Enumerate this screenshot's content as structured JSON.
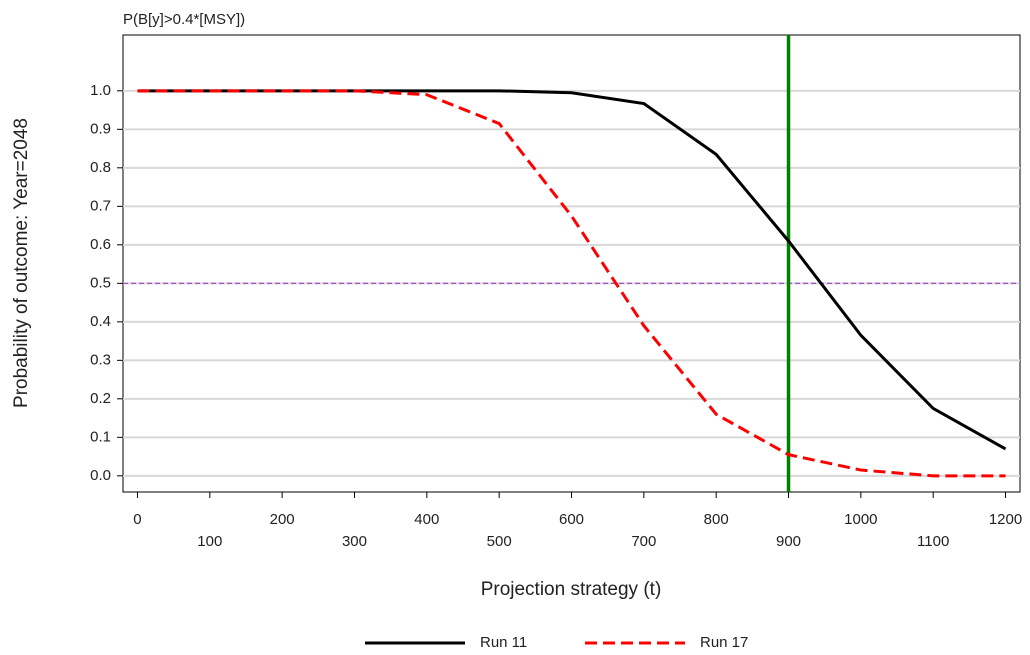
{
  "chart_data": {
    "type": "line",
    "annotation": "P(B[y]>0.4*[MSY])",
    "x_label": "Projection strategy (t)",
    "y_label": "Probability of outcome: Year=2048",
    "x": [
      0,
      100,
      200,
      300,
      400,
      500,
      600,
      700,
      800,
      900,
      1000,
      1100,
      1200
    ],
    "series": [
      {
        "name": "Run 11",
        "color": "#000000",
        "style": "solid",
        "values": [
          1,
          1,
          1,
          1,
          1,
          1,
          0.995,
          0.967,
          0.835,
          0.61,
          0.365,
          0.175,
          0.07
        ]
      },
      {
        "name": "Run 17",
        "color": "#ff0000",
        "style": "dashed",
        "values": [
          1,
          1,
          1,
          1,
          0.99,
          0.915,
          0.675,
          0.39,
          0.16,
          0.055,
          0.015,
          0,
          0
        ]
      }
    ],
    "xlim": [
      -20,
      1220
    ],
    "ylim": [
      -0.042,
      1.145
    ],
    "xticks": [
      0,
      100,
      200,
      300,
      400,
      500,
      600,
      700,
      800,
      900,
      1000,
      1100,
      1200
    ],
    "yticks": [
      {
        "value": 0,
        "label": "0.0"
      },
      0.1,
      0.2,
      0.3,
      0.4,
      0.5,
      0.6,
      0.7,
      0.8,
      0.9,
      {
        "value": 1,
        "label": "1.0"
      }
    ],
    "grid": true,
    "reference_lines": [
      {
        "axis": "y",
        "value": 0.5,
        "color": "#a040c0",
        "style": "dashed"
      },
      {
        "axis": "x",
        "value": 900,
        "color": "#008000",
        "style": "solid"
      }
    ],
    "legend": "bottom"
  }
}
